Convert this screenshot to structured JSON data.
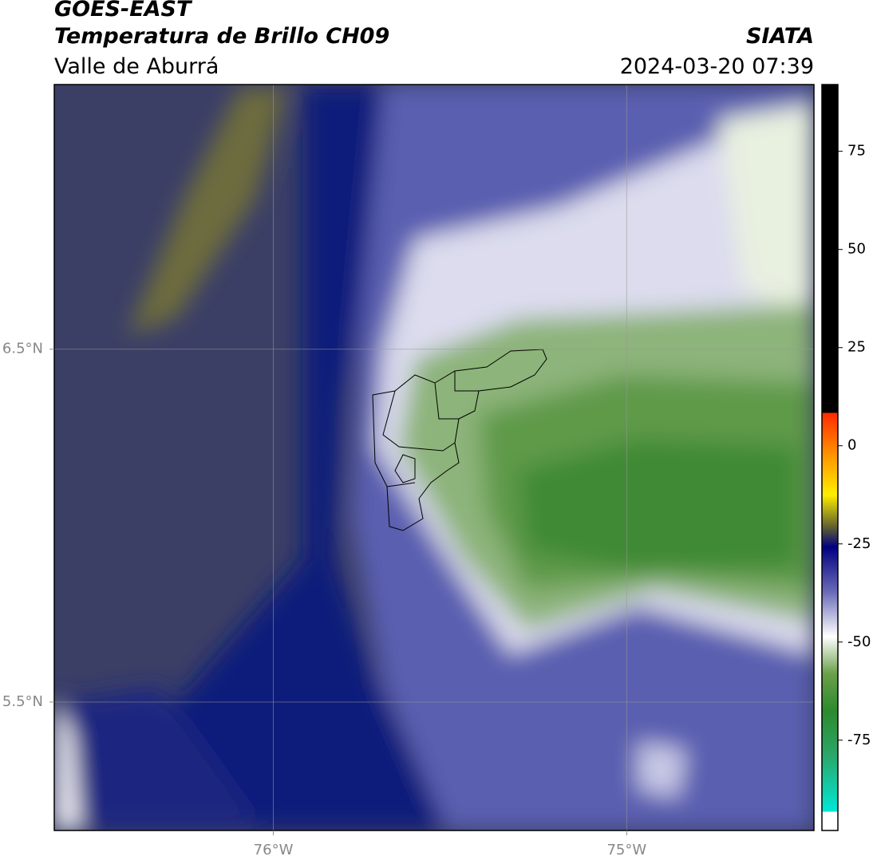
{
  "header": {
    "title": "GOES-EAST",
    "subtitle": "Temperatura de Brillo CH09",
    "region": "Valle de Aburrá",
    "source": "SIATA",
    "datetime": "2024-03-20 07:39"
  },
  "map": {
    "xlim": [
      -76.62,
      -74.47
    ],
    "ylim": [
      5.136,
      7.25
    ],
    "xticks": [
      {
        "value": -76,
        "label": "76°W"
      },
      {
        "value": -75,
        "label": "75°W"
      }
    ],
    "yticks": [
      {
        "value": 6.5,
        "label": "6.5°N"
      },
      {
        "value": 5.5,
        "label": "5.5°N"
      }
    ],
    "grid": true
  },
  "colorbar": {
    "lim": [
      -98,
      92
    ],
    "ticks": [
      75,
      50,
      25,
      0,
      -25,
      -50,
      -75
    ]
  }
}
